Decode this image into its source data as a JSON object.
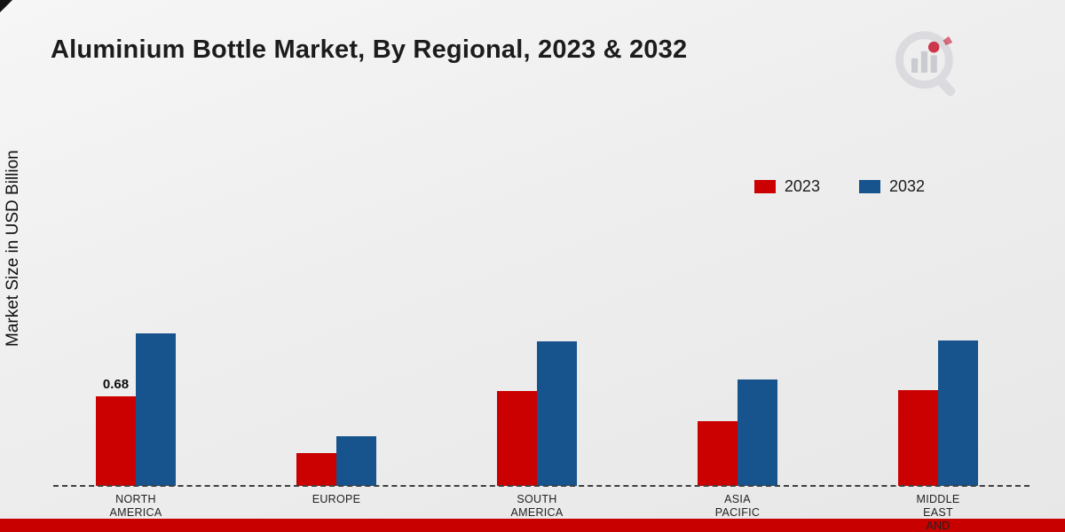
{
  "title": "Aluminium Bottle Market, By Regional, 2023 & 2032",
  "y_axis_label": "Market Size in USD Billion",
  "colors": {
    "series_2023": "#cb0001",
    "series_2032": "#17538d",
    "bottom_strip": "#c80000",
    "background": "#ededee"
  },
  "legend": {
    "items": [
      {
        "label": "2023",
        "color": "#cb0001"
      },
      {
        "label": "2032",
        "color": "#17538d"
      }
    ]
  },
  "chart_data": {
    "type": "bar",
    "title": "Aluminium Bottle Market, By Regional, 2023 & 2032",
    "xlabel": "",
    "ylabel": "Market Size in USD Billion",
    "ylim": [
      0,
      1.4
    ],
    "grid": false,
    "legend_position": "upper-right",
    "categories": [
      "NORTH AMERICA",
      "EUROPE",
      "SOUTH AMERICA",
      "ASIA PACIFIC",
      "MIDDLE EAST AND"
    ],
    "category_display_lines": [
      [
        "NORTH",
        "AMERICA"
      ],
      [
        "EUROPE"
      ],
      [
        "SOUTH",
        "AMERICA"
      ],
      [
        "ASIA",
        "PACIFIC"
      ],
      [
        "MIDDLE",
        "EAST",
        "AND"
      ]
    ],
    "series": [
      {
        "name": "2023",
        "color": "#cb0001",
        "values": [
          0.68,
          0.25,
          0.72,
          0.49,
          0.73
        ],
        "data_labels": [
          "0.68",
          null,
          null,
          null,
          null
        ]
      },
      {
        "name": "2032",
        "color": "#17538d",
        "values": [
          1.16,
          0.38,
          1.1,
          0.81,
          1.11
        ],
        "data_labels": [
          null,
          null,
          null,
          null,
          null
        ]
      }
    ]
  }
}
